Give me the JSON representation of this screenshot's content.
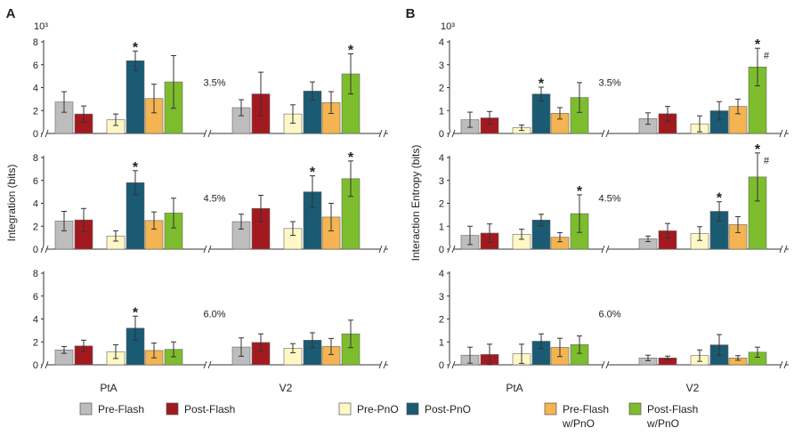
{
  "panel_letters": [
    "A",
    "B"
  ],
  "chart_data": [
    {
      "type": "bar",
      "title": "",
      "panel": "A",
      "ylabel": "Integration (bits)",
      "scale_note": "10³",
      "groups": [
        "PtA",
        "V2"
      ],
      "series_names": [
        "Pre-Flash",
        "Post-Flash",
        "Pre-PnO",
        "Post-PnO",
        "Pre-Flash w/PnO",
        "Post-Flash w/PnO"
      ],
      "rows": [
        {
          "label": "3.5%",
          "ylim": [
            0,
            8
          ],
          "yticks": [
            "0",
            "2",
            "4",
            "6",
            "8"
          ],
          "values": [
            [
              2.75,
              1.7,
              1.2,
              6.35,
              3.05,
              4.5
            ],
            [
              2.25,
              3.45,
              1.7,
              3.7,
              2.7,
              5.2
            ]
          ],
          "errors": [
            [
              0.9,
              0.7,
              0.5,
              0.85,
              1.25,
              2.3
            ],
            [
              0.7,
              1.9,
              0.8,
              0.8,
              0.95,
              1.75
            ]
          ],
          "markers": [
            [
              null,
              null,
              null,
              "*",
              null,
              null
            ],
            [
              null,
              null,
              null,
              null,
              null,
              "*"
            ]
          ]
        },
        {
          "label": "4.5%",
          "ylim": [
            0,
            8
          ],
          "yticks": [
            "0",
            "2",
            "4",
            "6",
            "8"
          ],
          "values": [
            [
              2.45,
              2.55,
              1.15,
              5.8,
              2.5,
              3.15
            ],
            [
              2.4,
              3.55,
              1.8,
              5.0,
              2.8,
              6.15
            ]
          ],
          "errors": [
            [
              0.85,
              1.0,
              0.45,
              1.05,
              0.75,
              1.3
            ],
            [
              0.65,
              1.15,
              0.6,
              1.4,
              1.2,
              1.55
            ]
          ],
          "markers": [
            [
              null,
              null,
              null,
              "*",
              null,
              null
            ],
            [
              null,
              null,
              null,
              "*",
              null,
              "*"
            ]
          ]
        },
        {
          "label": "6.0%",
          "ylim": [
            0,
            8
          ],
          "yticks": [
            "0",
            "2",
            "4",
            "6",
            "8"
          ],
          "values": [
            [
              1.3,
              1.65,
              1.15,
              3.2,
              1.25,
              1.35
            ],
            [
              1.55,
              1.95,
              1.45,
              2.15,
              1.6,
              2.7
            ]
          ],
          "errors": [
            [
              0.3,
              0.5,
              0.6,
              1.05,
              0.65,
              0.65
            ],
            [
              0.8,
              0.75,
              0.4,
              0.65,
              0.7,
              1.2
            ]
          ],
          "markers": [
            [
              null,
              null,
              null,
              "*",
              null,
              null
            ],
            [
              null,
              null,
              null,
              null,
              null,
              null
            ]
          ]
        }
      ]
    },
    {
      "type": "bar",
      "title": "",
      "panel": "B",
      "ylabel": "Interaction Entropy (bits)",
      "scale_note": "10³",
      "groups": [
        "PtA",
        "V2"
      ],
      "series_names": [
        "Pre-Flash",
        "Post-Flash",
        "Pre-PnO",
        "Post-PnO",
        "Pre-Flash w/PnO",
        "Post-Flash w/PnO"
      ],
      "rows": [
        {
          "label": "3.5%",
          "ylim": [
            0,
            4
          ],
          "yticks": [
            "0",
            "1",
            "2",
            "3",
            "4"
          ],
          "values": [
            [
              0.6,
              0.68,
              0.25,
              1.72,
              0.88,
              1.57
            ],
            [
              0.65,
              0.86,
              0.42,
              0.99,
              1.18,
              2.9
            ]
          ],
          "errors": [
            [
              0.33,
              0.28,
              0.12,
              0.3,
              0.25,
              0.65
            ],
            [
              0.25,
              0.32,
              0.35,
              0.4,
              0.32,
              0.82
            ]
          ],
          "markers": [
            [
              null,
              null,
              null,
              "*",
              null,
              null
            ],
            [
              null,
              null,
              null,
              null,
              null,
              "* #"
            ]
          ]
        },
        {
          "label": "4.5%",
          "ylim": [
            0,
            4
          ],
          "yticks": [
            "0",
            "1",
            "2",
            "3",
            "4"
          ],
          "values": [
            [
              0.6,
              0.7,
              0.65,
              1.27,
              0.52,
              1.55
            ],
            [
              0.45,
              0.8,
              0.68,
              1.65,
              1.07,
              3.15
            ]
          ],
          "errors": [
            [
              0.4,
              0.4,
              0.22,
              0.25,
              0.2,
              0.82
            ],
            [
              0.12,
              0.32,
              0.3,
              0.42,
              0.35,
              1.05
            ]
          ],
          "markers": [
            [
              null,
              null,
              null,
              null,
              null,
              "*"
            ],
            [
              null,
              null,
              null,
              "*",
              null,
              "* #"
            ]
          ]
        },
        {
          "label": "6.0%",
          "ylim": [
            0,
            4
          ],
          "yticks": [
            "0",
            "1",
            "2",
            "3",
            "4"
          ],
          "values": [
            [
              0.42,
              0.45,
              0.48,
              1.03,
              0.76,
              0.88
            ],
            [
              0.3,
              0.3,
              0.4,
              0.87,
              0.3,
              0.55
            ]
          ],
          "errors": [
            [
              0.35,
              0.45,
              0.42,
              0.32,
              0.4,
              0.38
            ],
            [
              0.12,
              0.08,
              0.25,
              0.45,
              0.1,
              0.22
            ]
          ],
          "markers": [
            [
              null,
              null,
              null,
              null,
              null,
              null
            ],
            [
              null,
              null,
              null,
              null,
              null,
              null
            ]
          ]
        }
      ]
    }
  ],
  "legend": [
    {
      "label": "Pre-Flash",
      "color": "#BDBDBD"
    },
    {
      "label": "Post-Flash",
      "color": "#A31920"
    },
    {
      "label": "Pre-PnO",
      "color": "#FFF8C6"
    },
    {
      "label": "Post-PnO",
      "color": "#1A5A72"
    },
    {
      "label": "Pre-Flash\nw/PnO",
      "color": "#F3B451"
    },
    {
      "label": "Post-Flash\nw/PnO",
      "color": "#7DBD2D"
    }
  ]
}
